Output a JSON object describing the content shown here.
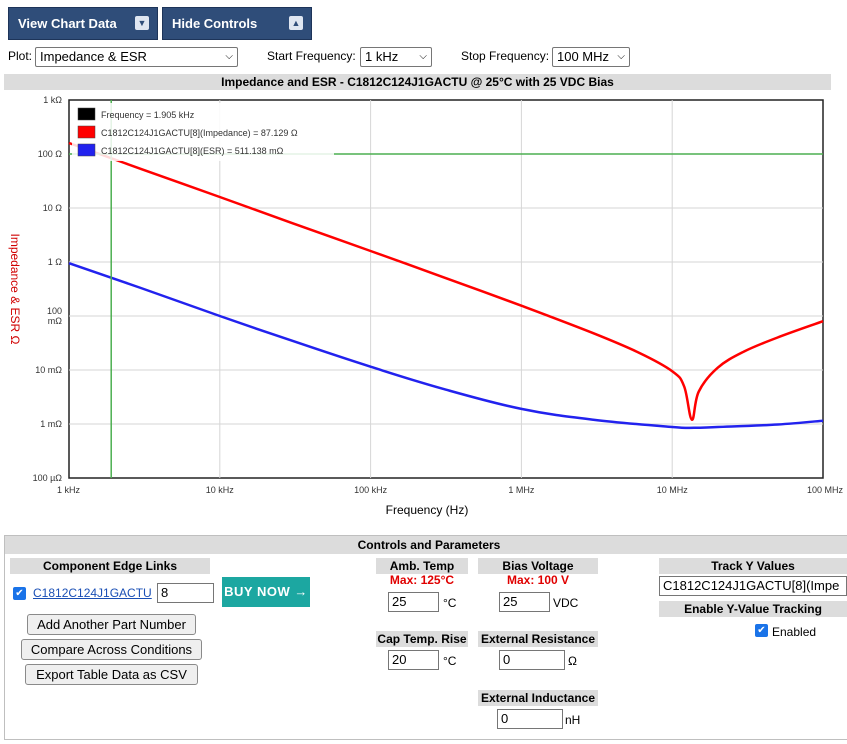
{
  "toolbar": {
    "view_chart_data": "View Chart Data",
    "hide_controls": "Hide Controls"
  },
  "selectors": {
    "plot_label": "Plot:",
    "plot_value": "Impedance & ESR",
    "start_label": "Start Frequency:",
    "start_value": "1 kHz",
    "stop_label": "Stop Frequency:",
    "stop_value": "100 MHz"
  },
  "chart_data": {
    "type": "line",
    "title": "Impedance and ESR - C1812C124J1GACTU @ 25°C with 25 VDC Bias",
    "xlabel": "Frequency (Hz)",
    "ylabel": "Impedance & ESR Ω",
    "x_scale": "log",
    "y_scale": "log",
    "xlim": [
      1000,
      100000000
    ],
    "ylim": [
      0.0001,
      1000
    ],
    "x_ticks": [
      {
        "value": 1000,
        "label": "1 kHz"
      },
      {
        "value": 10000,
        "label": "10 kHz"
      },
      {
        "value": 100000,
        "label": "100 kHz"
      },
      {
        "value": 1000000,
        "label": "1 MHz"
      },
      {
        "value": 10000000,
        "label": "10 MHz"
      },
      {
        "value": 100000000,
        "label": "100 MHz"
      }
    ],
    "y_ticks": [
      {
        "value": 1000,
        "label": "1 kΩ"
      },
      {
        "value": 100,
        "label": "100 Ω"
      },
      {
        "value": 10,
        "label": "10 Ω"
      },
      {
        "value": 1,
        "label": "1 Ω"
      },
      {
        "value": 0.1,
        "label": "100 mΩ"
      },
      {
        "value": 0.01,
        "label": "10 mΩ"
      },
      {
        "value": 0.001,
        "label": "1 mΩ"
      },
      {
        "value": 0.0001,
        "label": "100 µΩ"
      }
    ],
    "grid": true,
    "legend_position": "top-left",
    "legend": [
      {
        "label": "Frequency = 1.905 kHz",
        "color": "#000000"
      },
      {
        "label": "C1812C124J1GACTU[8](Impedance) = 87.129 Ω",
        "color": "#ff0000"
      },
      {
        "label": "C1812C124J1GACTU[8](ESR) = 511.138 mΩ",
        "color": "#2222ee"
      }
    ],
    "cursor_x": 1905,
    "cursor_y": 100,
    "series": [
      {
        "name": "C1812C124J1GACTU[8](Impedance)",
        "color": "#ff0000",
        "x": [
          1000,
          3000,
          10000,
          30000,
          100000,
          300000,
          1000000,
          3000000,
          6000000,
          10000000,
          12000000,
          13500000,
          15000000,
          20000000,
          30000000,
          50000000,
          100000000
        ],
        "y": [
          160,
          53,
          16,
          5.3,
          1.6,
          0.53,
          0.155,
          0.048,
          0.021,
          0.0095,
          0.005,
          0.0012,
          0.004,
          0.011,
          0.022,
          0.04,
          0.08
        ]
      },
      {
        "name": "C1812C124J1GACTU[8](ESR)",
        "color": "#2222ee",
        "x": [
          1000,
          3000,
          10000,
          30000,
          100000,
          300000,
          1000000,
          3000000,
          10000000,
          14000000,
          20000000,
          50000000,
          100000000
        ],
        "y": [
          0.95,
          0.33,
          0.1,
          0.035,
          0.0115,
          0.0045,
          0.0019,
          0.0012,
          0.00088,
          0.00085,
          0.00088,
          0.00098,
          0.00115
        ]
      }
    ]
  },
  "controls": {
    "title": "Controls and Parameters",
    "edge_links_title": "Component Edge Links",
    "part_number": "C1812C124J1GACTU",
    "part_qty": "8",
    "buy_now": "BUY NOW",
    "add_part": "Add Another Part Number",
    "compare": "Compare Across Conditions",
    "export": "Export Table Data as CSV",
    "amb_temp_title": "Amb. Temp",
    "amb_temp_max": "Max: 125°C",
    "amb_temp_value": "25",
    "amb_temp_unit": "°C",
    "bias_title": "Bias Voltage",
    "bias_max": "Max: 100 V",
    "bias_value": "25",
    "bias_unit": "VDC",
    "cap_rise_title": "Cap Temp. Rise",
    "cap_rise_value": "20",
    "cap_rise_unit": "°C",
    "ext_res_title": "External Resistance",
    "ext_res_value": "0",
    "ext_res_unit": "Ω",
    "ext_ind_title": "External Inductance",
    "ext_ind_value": "0",
    "ext_ind_unit": "nH",
    "track_title": "Track Y Values",
    "track_value": "C1812C124J1GACTU[8](Impe",
    "enable_title": "Enable Y-Value Tracking",
    "enabled_label": "Enabled"
  },
  "colors": {
    "button_bg": "#2f4d79",
    "buy_bg": "#1ca7a1",
    "impedance": "#ff0000",
    "esr": "#2222ee",
    "cursor": "#4caf50"
  }
}
